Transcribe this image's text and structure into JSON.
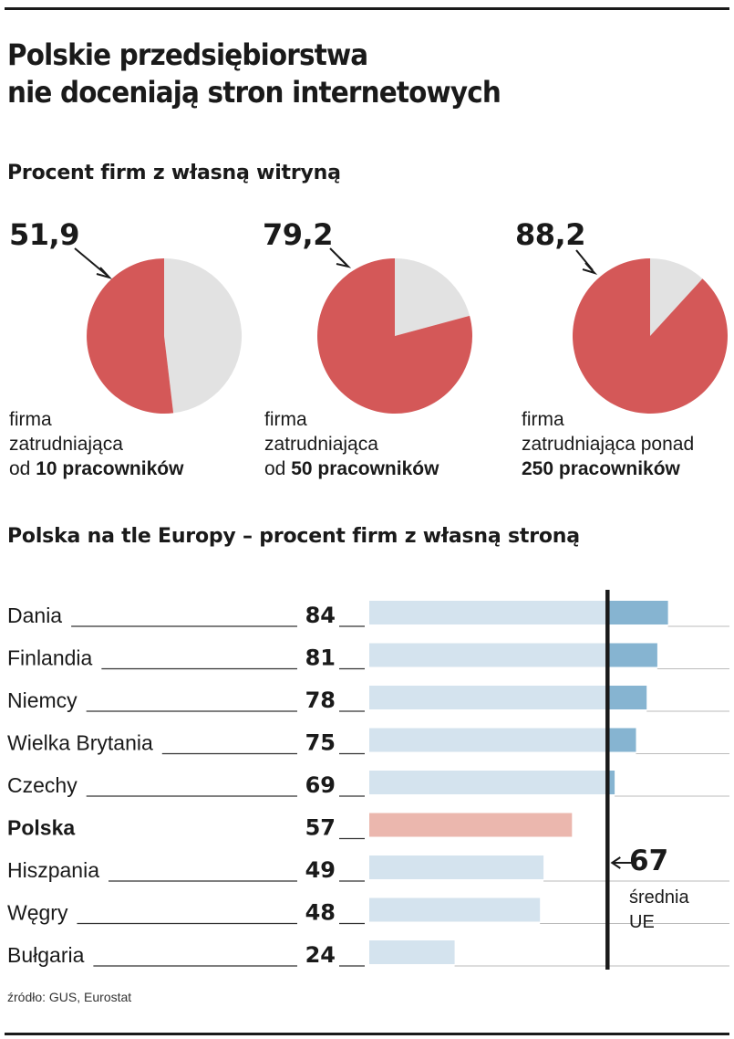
{
  "title_line1": "Polskie przedsiębiorstwa",
  "title_line2": "nie doceniają stron internetowych",
  "colors": {
    "pie_filled": "#d45858",
    "pie_rest": "#e2e2e2",
    "bar_base": "#d4e3ee",
    "bar_above_avg": "#86b4d1",
    "bar_poland": "#ebb7ae",
    "text": "#1a1a1a"
  },
  "chart_data": [
    {
      "type": "pie",
      "title": "Procent firm z własną witryną",
      "pies": [
        {
          "value_label": "51,9",
          "value": 51.9,
          "caption": [
            "firma",
            "zatrudniająca"
          ],
          "caption_last_plain": "od ",
          "caption_last_bold": "10 pracowników"
        },
        {
          "value_label": "79,2",
          "value": 79.2,
          "caption": [
            "firma",
            "zatrudniająca"
          ],
          "caption_last_plain": "od ",
          "caption_last_bold": "50 pracowników"
        },
        {
          "value_label": "88,2",
          "value": 88.2,
          "caption": [
            "firma",
            "zatrudniająca ponad"
          ],
          "caption_last_plain": "",
          "caption_last_bold": "250 pracowników"
        }
      ]
    },
    {
      "type": "bar",
      "title": "Polska na tle Europy – procent firm z własną stroną",
      "categories": [
        "Dania",
        "Finlandia",
        "Niemcy",
        "Wielka Brytania",
        "Czechy",
        "Polska",
        "Hiszpania",
        "Węgry",
        "Bułgaria"
      ],
      "values": [
        84,
        81,
        78,
        75,
        69,
        57,
        49,
        48,
        24
      ],
      "highlight": "Polska",
      "reference_line": {
        "value": 67,
        "value_label": "67",
        "label_lines": [
          "średnia",
          "UE"
        ]
      }
    }
  ],
  "source": "źródło: GUS, Eurostat"
}
